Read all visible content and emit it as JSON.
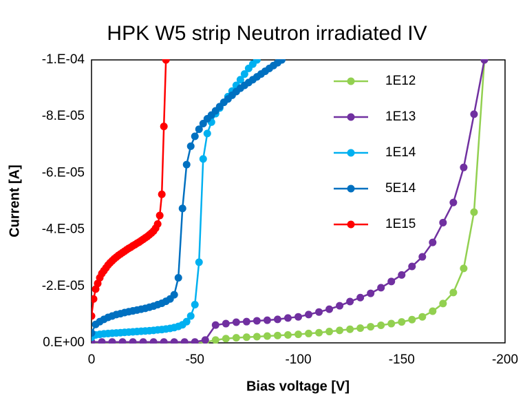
{
  "chart_data": {
    "type": "line",
    "title": "HPK W5 strip Neutron irradiated IV",
    "xlabel": "Bias voltage [V]",
    "ylabel": "Current [A]",
    "xlim": [
      0,
      -200
    ],
    "xticks": [
      0,
      -50,
      -100,
      -150,
      -200
    ],
    "ylim": [
      0,
      -0.0001
    ],
    "yticks": [
      {
        "value": 0,
        "label": "0.E+00"
      },
      {
        "value": -2e-05,
        "label": "-2.E-05"
      },
      {
        "value": -4e-05,
        "label": "-4.E-05"
      },
      {
        "value": -6e-05,
        "label": "-6.E-05"
      },
      {
        "value": -8e-05,
        "label": "-8.E-05"
      },
      {
        "value": -0.0001,
        "label": "-1.E-04"
      }
    ],
    "grid": false,
    "legend": "right",
    "series": [
      {
        "name": "1E12",
        "color": "#92d050",
        "x": [
          0,
          -5,
          -10,
          -15,
          -20,
          -25,
          -30,
          -35,
          -40,
          -45,
          -50,
          -55,
          -60,
          -65,
          -70,
          -75,
          -80,
          -85,
          -90,
          -95,
          -100,
          -105,
          -110,
          -115,
          -120,
          -125,
          -130,
          -135,
          -140,
          -145,
          -150,
          -155,
          -160,
          -165,
          -170,
          -175,
          -180,
          -185,
          -190
        ],
        "values": [
          -2e-07,
          -2e-07,
          -2e-07,
          -2e-07,
          -2e-07,
          -2e-07,
          -2e-07,
          -2e-07,
          -2e-07,
          -2e-07,
          -2e-07,
          -2e-07,
          -1e-06,
          -1.5e-06,
          -1.8e-06,
          -2e-06,
          -2.2e-06,
          -2.4e-06,
          -2.6e-06,
          -2.8e-06,
          -3e-06,
          -3.3e-06,
          -3.6e-06,
          -4e-06,
          -4.4e-06,
          -4.8e-06,
          -5.2e-06,
          -5.7e-06,
          -6.2e-06,
          -6.8e-06,
          -7.4e-06,
          -8.2e-06,
          -9.2e-06,
          -1.12e-05,
          -1.39e-05,
          -1.78e-05,
          -2.63e-05,
          -4.62e-05,
          -0.0001
        ]
      },
      {
        "name": "1E13",
        "color": "#7030a0",
        "x": [
          0,
          -5,
          -10,
          -15,
          -20,
          -25,
          -30,
          -35,
          -40,
          -45,
          -50,
          -55,
          -60,
          -65,
          -70,
          -75,
          -80,
          -85,
          -90,
          -95,
          -100,
          -105,
          -110,
          -115,
          -120,
          -125,
          -130,
          -135,
          -140,
          -145,
          -150,
          -155,
          -160,
          -165,
          -170,
          -175,
          -180,
          -185,
          -190
        ],
        "values": [
          -3e-07,
          -3e-07,
          -3e-07,
          -3e-07,
          -3e-07,
          -3e-07,
          -3e-07,
          -3e-07,
          -3e-07,
          -3e-07,
          -3e-07,
          -1e-06,
          -6.3e-06,
          -6.8e-06,
          -7.3e-06,
          -7.5e-06,
          -7.8e-06,
          -8e-06,
          -8.3e-06,
          -8.8e-06,
          -9.2e-06,
          -1e-05,
          -1.09e-05,
          -1.19e-05,
          -1.31e-05,
          -1.46e-05,
          -1.6e-05,
          -1.75e-05,
          -1.95e-05,
          -2.17e-05,
          -2.4e-05,
          -2.7e-05,
          -3.04e-05,
          -3.55e-05,
          -4.25e-05,
          -4.96e-05,
          -6.2e-05,
          -8.08e-05,
          -0.0001
        ]
      },
      {
        "name": "1E14",
        "color": "#00b0f0",
        "x": [
          0,
          -2,
          -4,
          -6,
          -8,
          -10,
          -12,
          -14,
          -16,
          -18,
          -20,
          -22,
          -24,
          -26,
          -28,
          -30,
          -32,
          -34,
          -36,
          -38,
          -40,
          -42,
          -44,
          -46,
          -48,
          -50,
          -52,
          -54,
          -56,
          -58,
          -60,
          -62,
          -64,
          -66,
          -68,
          -70,
          -72,
          -74,
          -76,
          -78,
          -80
        ],
        "values": [
          -2e-06,
          -2.8e-06,
          -3e-06,
          -3.2e-06,
          -3.3e-06,
          -3.4e-06,
          -3.5e-06,
          -3.6e-06,
          -3.7e-06,
          -3.8e-06,
          -3.9e-06,
          -4e-06,
          -4.1e-06,
          -4.2e-06,
          -4.3e-06,
          -4.4e-06,
          -4.6e-06,
          -4.7e-06,
          -4.9e-06,
          -5.1e-06,
          -5.4e-06,
          -5.8e-06,
          -6.4e-06,
          -7.5e-06,
          -9.5e-06,
          -1.35e-05,
          -2.85e-05,
          -6.5e-05,
          -7.4e-05,
          -7.8e-05,
          -8.1e-05,
          -8.3e-05,
          -8.5e-05,
          -8.7e-05,
          -8.9e-05,
          -9.1e-05,
          -9.3e-05,
          -9.5e-05,
          -9.7e-05,
          -9.85e-05,
          -0.0001
        ]
      },
      {
        "name": "5E14",
        "color": "#0070c0",
        "x": [
          0,
          -2,
          -4,
          -6,
          -8,
          -10,
          -12,
          -14,
          -16,
          -18,
          -20,
          -22,
          -24,
          -26,
          -28,
          -30,
          -32,
          -34,
          -36,
          -38,
          -40,
          -42,
          -44,
          -46,
          -48,
          -50,
          -52,
          -54,
          -56,
          -58,
          -60,
          -62,
          -64,
          -66,
          -68,
          -70,
          -72,
          -74,
          -76,
          -78,
          -80,
          -82,
          -84,
          -86,
          -88,
          -90,
          -92
        ],
        "values": [
          -3.5e-06,
          -6.5e-06,
          -7.5e-06,
          -8.3e-06,
          -9e-06,
          -9.5e-06,
          -1e-05,
          -1.03e-05,
          -1.07e-05,
          -1.1e-05,
          -1.13e-05,
          -1.16e-05,
          -1.19e-05,
          -1.22e-05,
          -1.26e-05,
          -1.3e-05,
          -1.35e-05,
          -1.4e-05,
          -1.47e-05,
          -1.55e-05,
          -1.7e-05,
          -2.3e-05,
          -4.75e-05,
          -6.3e-05,
          -6.95e-05,
          -7.3e-05,
          -7.55e-05,
          -7.75e-05,
          -7.92e-05,
          -8.05e-05,
          -8.2e-05,
          -8.35e-05,
          -8.5e-05,
          -8.62e-05,
          -8.75e-05,
          -8.88e-05,
          -9e-05,
          -9.1e-05,
          -9.2e-05,
          -9.3e-05,
          -9.4e-05,
          -9.5e-05,
          -9.6e-05,
          -9.7e-05,
          -9.8e-05,
          -9.9e-05,
          -0.0001
        ]
      },
      {
        "name": "1E15",
        "color": "#ff0000",
        "x": [
          0,
          -1,
          -2,
          -3,
          -4,
          -5,
          -6,
          -7,
          -8,
          -9,
          -10,
          -11,
          -12,
          -13,
          -14,
          -15,
          -16,
          -17,
          -18,
          -19,
          -20,
          -21,
          -22,
          -23,
          -24,
          -25,
          -26,
          -27,
          -28,
          -29,
          -30,
          -31,
          -32,
          -33,
          -34,
          -35,
          -36
        ],
        "values": [
          -9.5e-06,
          -1.55e-05,
          -1.9e-05,
          -2.1e-05,
          -2.3e-05,
          -2.45e-05,
          -2.55e-05,
          -2.65e-05,
          -2.75e-05,
          -2.83e-05,
          -2.9e-05,
          -2.97e-05,
          -3.03e-05,
          -3.09e-05,
          -3.14e-05,
          -3.19e-05,
          -3.24e-05,
          -3.29e-05,
          -3.34e-05,
          -3.38e-05,
          -3.43e-05,
          -3.47e-05,
          -3.52e-05,
          -3.56e-05,
          -3.61e-05,
          -3.66e-05,
          -3.71e-05,
          -3.76e-05,
          -3.82e-05,
          -3.88e-05,
          -3.95e-05,
          -4.05e-05,
          -4.2e-05,
          -4.5e-05,
          -5.25e-05,
          -7.65e-05,
          -0.0001
        ]
      }
    ]
  }
}
